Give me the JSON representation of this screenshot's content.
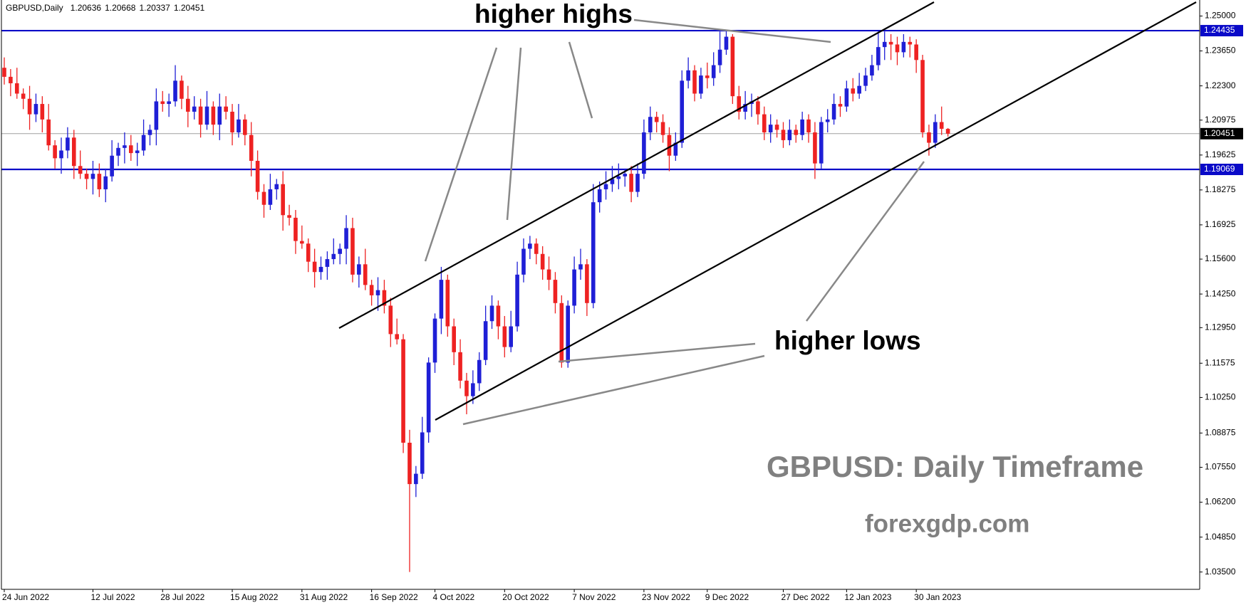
{
  "chart_data": {
    "type": "candlestick",
    "title": "GBPUSD,Daily",
    "annotations": [
      "higher highs",
      "higher lows"
    ],
    "watermark": "GBPUSD: Daily Timeframe",
    "site": "forexgdp.com",
    "bull_color": "#1f1fd6",
    "bear_color": "#ee2222",
    "levels": [
      1.24435,
      1.19069
    ],
    "level_color": "#0a0ac8",
    "current_color": "#a0a0a0",
    "ylim": [
      1.0283,
      1.2562
    ],
    "yticks": [
      {
        "value": 1.035,
        "label": "1.03500"
      },
      {
        "value": 1.0485,
        "label": "1.04850"
      },
      {
        "value": 1.062,
        "label": "1.06200"
      },
      {
        "value": 1.0755,
        "label": "1.07550"
      },
      {
        "value": 1.08875,
        "label": "1.08875"
      },
      {
        "value": 1.1025,
        "label": "1.10250"
      },
      {
        "value": 1.11575,
        "label": "1.11575"
      },
      {
        "value": 1.1295,
        "label": "1.12950"
      },
      {
        "value": 1.1425,
        "label": "1.14250"
      },
      {
        "value": 1.156,
        "label": "1.15600"
      },
      {
        "value": 1.16925,
        "label": "1.16925"
      },
      {
        "value": 1.18275,
        "label": "1.18275"
      },
      {
        "value": 1.19625,
        "label": "1.19625"
      },
      {
        "value": 1.20975,
        "label": "1.20975"
      },
      {
        "value": 1.223,
        "label": "1.22300"
      },
      {
        "value": 1.2365,
        "label": "1.23650"
      },
      {
        "value": 1.25,
        "label": "1.25000"
      }
    ],
    "categories": [
      "24 Jun 2022",
      null,
      null,
      null,
      null,
      null,
      null,
      null,
      null,
      null,
      null,
      null,
      null,
      null,
      "12 Jul 2022",
      null,
      null,
      null,
      null,
      null,
      null,
      null,
      null,
      null,
      null,
      "28 Jul 2022",
      null,
      null,
      null,
      null,
      null,
      null,
      null,
      null,
      null,
      null,
      "15 Aug 2022",
      null,
      null,
      null,
      null,
      null,
      null,
      null,
      null,
      null,
      null,
      "31 Aug 2022",
      null,
      null,
      null,
      null,
      null,
      null,
      null,
      null,
      null,
      null,
      "16 Sep 2022",
      null,
      null,
      null,
      null,
      null,
      null,
      null,
      null,
      null,
      "4 Oct 2022",
      null,
      null,
      null,
      null,
      null,
      null,
      null,
      null,
      null,
      null,
      "20 Oct 2022",
      null,
      null,
      null,
      null,
      null,
      null,
      null,
      null,
      null,
      null,
      "7 Nov 2022",
      null,
      null,
      null,
      null,
      null,
      null,
      null,
      null,
      null,
      null,
      "23 Nov 2022",
      null,
      null,
      null,
      null,
      null,
      null,
      null,
      null,
      null,
      "9 Dec 2022",
      null,
      null,
      null,
      null,
      null,
      null,
      null,
      null,
      null,
      null,
      null,
      "27 Dec 2022",
      null,
      null,
      null,
      null,
      null,
      null,
      null,
      null,
      null,
      "12 Jan 2023",
      null,
      null,
      null,
      null,
      null,
      null,
      null,
      null,
      null,
      null,
      "30 Jan 2023",
      null,
      null,
      null,
      null,
      null
    ],
    "ohlc": [
      [
        1.23,
        1.234,
        1.2235,
        1.2265
      ],
      [
        1.2265,
        1.2295,
        1.219,
        1.224
      ],
      [
        1.224,
        1.23,
        1.218,
        1.22
      ],
      [
        1.22,
        1.222,
        1.214,
        1.218
      ],
      [
        1.218,
        1.223,
        1.206,
        1.212
      ],
      [
        1.212,
        1.22,
        1.209,
        1.216
      ],
      [
        1.216,
        1.219,
        1.205,
        1.21
      ],
      [
        1.21,
        1.216,
        1.198,
        1.2
      ],
      [
        1.2,
        1.202,
        1.191,
        1.195
      ],
      [
        1.195,
        1.203,
        1.189,
        1.198
      ],
      [
        1.198,
        1.207,
        1.195,
        1.203
      ],
      [
        1.203,
        1.206,
        1.187,
        1.192
      ],
      [
        1.192,
        1.198,
        1.187,
        1.189
      ],
      [
        1.189,
        1.191,
        1.183,
        1.187
      ],
      [
        1.187,
        1.194,
        1.181,
        1.189
      ],
      [
        1.189,
        1.193,
        1.18,
        1.183
      ],
      [
        1.183,
        1.191,
        1.178,
        1.188
      ],
      [
        1.188,
        1.202,
        1.186,
        1.196
      ],
      [
        1.196,
        1.201,
        1.192,
        1.199
      ],
      [
        1.199,
        1.205,
        1.193,
        1.2
      ],
      [
        1.2,
        1.204,
        1.194,
        1.197
      ],
      [
        1.197,
        1.201,
        1.192,
        1.198
      ],
      [
        1.198,
        1.21,
        1.196,
        1.204
      ],
      [
        1.204,
        1.208,
        1.2,
        1.206
      ],
      [
        1.206,
        1.222,
        1.2,
        1.217
      ],
      [
        1.217,
        1.221,
        1.213,
        1.216
      ],
      [
        1.216,
        1.22,
        1.211,
        1.217
      ],
      [
        1.217,
        1.231,
        1.215,
        1.225
      ],
      [
        1.225,
        1.227,
        1.214,
        1.218
      ],
      [
        1.218,
        1.223,
        1.207,
        1.213
      ],
      [
        1.213,
        1.219,
        1.21,
        1.215
      ],
      [
        1.215,
        1.218,
        1.203,
        1.208
      ],
      [
        1.208,
        1.221,
        1.206,
        1.215
      ],
      [
        1.215,
        1.217,
        1.204,
        1.208
      ],
      [
        1.208,
        1.22,
        1.202,
        1.215
      ],
      [
        1.215,
        1.219,
        1.21,
        1.213
      ],
      [
        1.213,
        1.216,
        1.2,
        1.205
      ],
      [
        1.205,
        1.216,
        1.203,
        1.21
      ],
      [
        1.21,
        1.212,
        1.2,
        1.204
      ],
      [
        1.204,
        1.209,
        1.188,
        1.194
      ],
      [
        1.194,
        1.198,
        1.179,
        1.182
      ],
      [
        1.182,
        1.185,
        1.172,
        1.177
      ],
      [
        1.177,
        1.189,
        1.175,
        1.183
      ],
      [
        1.183,
        1.187,
        1.179,
        1.185
      ],
      [
        1.185,
        1.19,
        1.167,
        1.173
      ],
      [
        1.173,
        1.177,
        1.169,
        1.172
      ],
      [
        1.172,
        1.175,
        1.158,
        1.163
      ],
      [
        1.163,
        1.169,
        1.16,
        1.162
      ],
      [
        1.162,
        1.164,
        1.151,
        1.155
      ],
      [
        1.155,
        1.16,
        1.145,
        1.151
      ],
      [
        1.151,
        1.157,
        1.148,
        1.153
      ],
      [
        1.153,
        1.159,
        1.148,
        1.156
      ],
      [
        1.156,
        1.164,
        1.154,
        1.158
      ],
      [
        1.158,
        1.162,
        1.154,
        1.16
      ],
      [
        1.16,
        1.173,
        1.154,
        1.168
      ],
      [
        1.168,
        1.172,
        1.147,
        1.15
      ],
      [
        1.15,
        1.157,
        1.145,
        1.154
      ],
      [
        1.154,
        1.16,
        1.144,
        1.146
      ],
      [
        1.146,
        1.148,
        1.138,
        1.142
      ],
      [
        1.142,
        1.149,
        1.136,
        1.144
      ],
      [
        1.144,
        1.148,
        1.135,
        1.138
      ],
      [
        1.138,
        1.141,
        1.122,
        1.127
      ],
      [
        1.127,
        1.133,
        1.123,
        1.125
      ],
      [
        1.125,
        1.127,
        1.081,
        1.085
      ],
      [
        1.085,
        1.09,
        1.035,
        1.069
      ],
      [
        1.069,
        1.076,
        1.064,
        1.073
      ],
      [
        1.073,
        1.095,
        1.071,
        1.089
      ],
      [
        1.089,
        1.118,
        1.085,
        1.116
      ],
      [
        1.116,
        1.135,
        1.112,
        1.133
      ],
      [
        1.133,
        1.153,
        1.127,
        1.148
      ],
      [
        1.148,
        1.15,
        1.126,
        1.13
      ],
      [
        1.13,
        1.133,
        1.115,
        1.12
      ],
      [
        1.12,
        1.125,
        1.106,
        1.109
      ],
      [
        1.109,
        1.112,
        1.096,
        1.103
      ],
      [
        1.103,
        1.113,
        1.1,
        1.108
      ],
      [
        1.108,
        1.12,
        1.105,
        1.117
      ],
      [
        1.117,
        1.138,
        1.115,
        1.132
      ],
      [
        1.132,
        1.142,
        1.129,
        1.138
      ],
      [
        1.138,
        1.14,
        1.125,
        1.13
      ],
      [
        1.13,
        1.134,
        1.118,
        1.122
      ],
      [
        1.122,
        1.136,
        1.12,
        1.13
      ],
      [
        1.13,
        1.155,
        1.128,
        1.15
      ],
      [
        1.15,
        1.164,
        1.147,
        1.16
      ],
      [
        1.16,
        1.165,
        1.156,
        1.162
      ],
      [
        1.162,
        1.164,
        1.154,
        1.158
      ],
      [
        1.158,
        1.161,
        1.148,
        1.152
      ],
      [
        1.152,
        1.157,
        1.144,
        1.148
      ],
      [
        1.148,
        1.151,
        1.135,
        1.139
      ],
      [
        1.139,
        1.142,
        1.114,
        1.116
      ],
      [
        1.116,
        1.14,
        1.114,
        1.138
      ],
      [
        1.138,
        1.157,
        1.135,
        1.152
      ],
      [
        1.152,
        1.16,
        1.148,
        1.154
      ],
      [
        1.154,
        1.156,
        1.134,
        1.139
      ],
      [
        1.139,
        1.185,
        1.137,
        1.178
      ],
      [
        1.178,
        1.186,
        1.174,
        1.183
      ],
      [
        1.183,
        1.19,
        1.179,
        1.185
      ],
      [
        1.185,
        1.192,
        1.182,
        1.187
      ],
      [
        1.187,
        1.193,
        1.183,
        1.188
      ],
      [
        1.188,
        1.191,
        1.184,
        1.189
      ],
      [
        1.189,
        1.192,
        1.178,
        1.182
      ],
      [
        1.182,
        1.193,
        1.18,
        1.189
      ],
      [
        1.189,
        1.21,
        1.187,
        1.205
      ],
      [
        1.205,
        1.215,
        1.202,
        1.211
      ],
      [
        1.211,
        1.213,
        1.205,
        1.209
      ],
      [
        1.209,
        1.212,
        1.201,
        1.204
      ],
      [
        1.204,
        1.207,
        1.19,
        1.196
      ],
      [
        1.196,
        1.205,
        1.194,
        1.201
      ],
      [
        1.201,
        1.229,
        1.199,
        1.225
      ],
      [
        1.225,
        1.234,
        1.222,
        1.229
      ],
      [
        1.229,
        1.231,
        1.217,
        1.22
      ],
      [
        1.22,
        1.23,
        1.218,
        1.227
      ],
      [
        1.227,
        1.232,
        1.222,
        1.226
      ],
      [
        1.226,
        1.236,
        1.223,
        1.231
      ],
      [
        1.231,
        1.244,
        1.228,
        1.237
      ],
      [
        1.237,
        1.2444,
        1.235,
        1.242
      ],
      [
        1.242,
        1.243,
        1.216,
        1.219
      ],
      [
        1.219,
        1.223,
        1.21,
        1.213
      ],
      [
        1.213,
        1.221,
        1.21,
        1.216
      ],
      [
        1.216,
        1.22,
        1.211,
        1.217
      ],
      [
        1.217,
        1.219,
        1.208,
        1.212
      ],
      [
        1.212,
        1.215,
        1.202,
        1.205
      ],
      [
        1.205,
        1.212,
        1.201,
        1.208
      ],
      [
        1.208,
        1.21,
        1.203,
        1.206
      ],
      [
        1.206,
        1.209,
        1.199,
        1.202
      ],
      [
        1.202,
        1.21,
        1.2,
        1.206
      ],
      [
        1.206,
        1.208,
        1.201,
        1.204
      ],
      [
        1.204,
        1.213,
        1.202,
        1.21
      ],
      [
        1.21,
        1.212,
        1.201,
        1.205
      ],
      [
        1.205,
        1.209,
        1.187,
        1.193
      ],
      [
        1.193,
        1.211,
        1.191,
        1.209
      ],
      [
        1.209,
        1.214,
        1.205,
        1.21
      ],
      [
        1.21,
        1.22,
        1.208,
        1.216
      ],
      [
        1.216,
        1.219,
        1.211,
        1.215
      ],
      [
        1.215,
        1.225,
        1.213,
        1.222
      ],
      [
        1.222,
        1.226,
        1.217,
        1.22
      ],
      [
        1.22,
        1.228,
        1.218,
        1.223
      ],
      [
        1.223,
        1.23,
        1.221,
        1.227
      ],
      [
        1.227,
        1.235,
        1.225,
        1.231
      ],
      [
        1.231,
        1.244,
        1.229,
        1.238
      ],
      [
        1.238,
        1.244,
        1.233,
        1.24
      ],
      [
        1.24,
        1.243,
        1.233,
        1.239
      ],
      [
        1.239,
        1.242,
        1.231,
        1.236
      ],
      [
        1.236,
        1.243,
        1.234,
        1.24
      ],
      [
        1.24,
        1.242,
        1.234,
        1.239
      ],
      [
        1.239,
        1.241,
        1.228,
        1.233
      ],
      [
        1.233,
        1.235,
        1.203,
        1.205
      ],
      [
        1.205,
        1.208,
        1.196,
        1.201
      ],
      [
        1.201,
        1.212,
        1.199,
        1.209
      ],
      [
        1.209,
        1.215,
        1.204,
        1.2064
      ],
      [
        1.20636,
        1.20668,
        1.20337,
        1.20451
      ]
    ]
  }
}
